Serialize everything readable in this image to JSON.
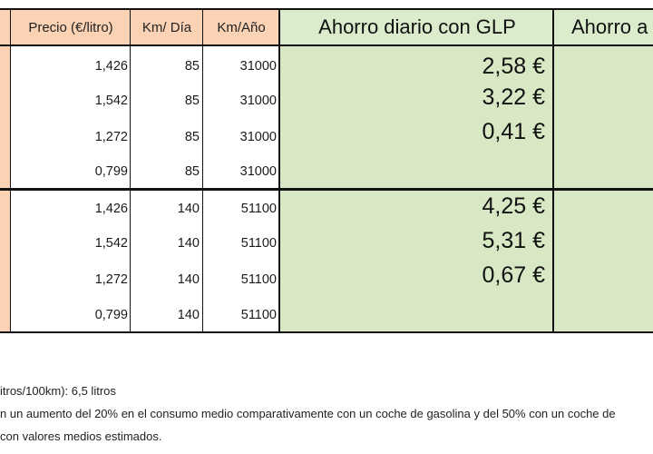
{
  "colors": {
    "orange_fill": "#fbd2b4",
    "green_fill": "#d8e8c4",
    "header_green": "#daeccb",
    "border": "#111111"
  },
  "header": {
    "price": "Precio (€/litro)",
    "km_day": "Km/ Día",
    "km_year": "Km/Año",
    "daily_saving": "Ahorro diario con GLP",
    "annual_saving_partial": "Ahorro a"
  },
  "groups": [
    {
      "rows": [
        {
          "price": "1,426",
          "km_day": "85",
          "km_year": "31000",
          "saving": "2,58 €"
        },
        {
          "price": "1,542",
          "km_day": "85",
          "km_year": "31000",
          "saving": "3,22 €"
        },
        {
          "price": "1,272",
          "km_day": "85",
          "km_year": "31000",
          "saving": "0,41 €"
        },
        {
          "price": "0,799",
          "km_day": "85",
          "km_year": "31000",
          "saving": ""
        }
      ]
    },
    {
      "rows": [
        {
          "price": "1,426",
          "km_day": "140",
          "km_year": "51100",
          "saving": "4,25 €"
        },
        {
          "price": "1,542",
          "km_day": "140",
          "km_year": "51100",
          "saving": "5,31 €"
        },
        {
          "price": "1,272",
          "km_day": "140",
          "km_year": "51100",
          "saving": "0,67 €"
        },
        {
          "price": "0,799",
          "km_day": "140",
          "km_year": "51100",
          "saving": ""
        }
      ]
    }
  ],
  "notes": [
    "itros/100km): 6,5 litros",
    "n un aumento del 20% en el consumo medio comparativamente con un coche de gasolina y del 50% con un coche de",
    "con valores medios estimados."
  ]
}
